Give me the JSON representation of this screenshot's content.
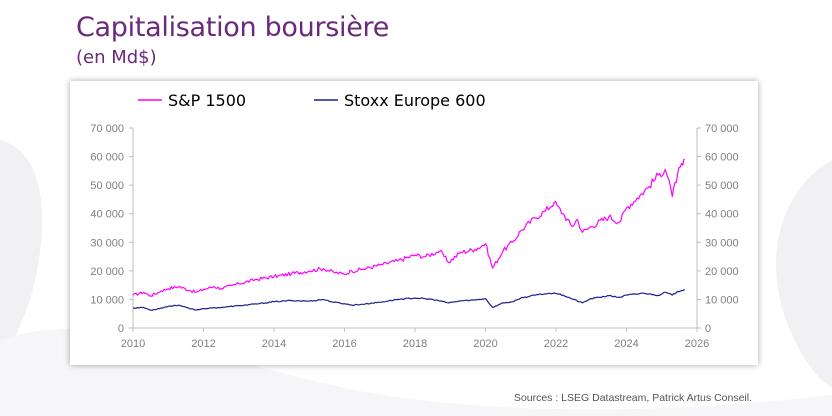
{
  "title": "Capitalisation boursière",
  "subtitle": "(en Md$)",
  "source": "Sources : LSEG Datastream, Patrick Artus Conseil.",
  "colors": {
    "title": "#6a2a7a",
    "sp1500": "#ff00ff",
    "stoxx600": "#1f1f8f",
    "axis": "#bfbfbf",
    "tick_text": "#7f7f7f"
  },
  "chart_data": {
    "type": "line",
    "title": "",
    "xlabel": "",
    "ylabel": "",
    "xlim": [
      2010,
      2026
    ],
    "ylim": [
      0,
      70000
    ],
    "x_ticks": [
      "2010",
      "2012",
      "2014",
      "2016",
      "2018",
      "2020",
      "2022",
      "2024",
      "2026"
    ],
    "y_ticks_left": [
      "70 000",
      "60 000",
      "50 000",
      "40 000",
      "30 000",
      "20 000",
      "10 000",
      "0"
    ],
    "y_ticks_right": [
      "70 000",
      "60 000",
      "50 000",
      "40 000",
      "30 000",
      "20 000",
      "10 000",
      "0"
    ],
    "grid": false,
    "legend_position": "top-left",
    "series": [
      {
        "name": "S&P 1500",
        "color": "#ff00ff",
        "points": [
          [
            2010.0,
            11500
          ],
          [
            2010.3,
            12500
          ],
          [
            2010.5,
            11200
          ],
          [
            2010.8,
            13000
          ],
          [
            2011.0,
            13800
          ],
          [
            2011.3,
            14500
          ],
          [
            2011.6,
            13200
          ],
          [
            2011.8,
            12500
          ],
          [
            2012.0,
            13500
          ],
          [
            2012.3,
            14500
          ],
          [
            2012.5,
            13800
          ],
          [
            2012.8,
            14800
          ],
          [
            2013.0,
            15500
          ],
          [
            2013.5,
            17000
          ],
          [
            2014.0,
            18000
          ],
          [
            2014.5,
            19000
          ],
          [
            2015.0,
            20000
          ],
          [
            2015.4,
            20800
          ],
          [
            2015.7,
            19500
          ],
          [
            2016.0,
            18800
          ],
          [
            2016.2,
            20000
          ],
          [
            2016.5,
            20500
          ],
          [
            2017.0,
            22000
          ],
          [
            2017.5,
            23500
          ],
          [
            2018.0,
            25500
          ],
          [
            2018.3,
            25000
          ],
          [
            2018.7,
            27000
          ],
          [
            2018.95,
            23000
          ],
          [
            2019.3,
            26500
          ],
          [
            2019.7,
            27500
          ],
          [
            2020.0,
            29500
          ],
          [
            2020.2,
            21000
          ],
          [
            2020.5,
            27000
          ],
          [
            2020.8,
            30500
          ],
          [
            2021.0,
            34000
          ],
          [
            2021.4,
            38500
          ],
          [
            2021.7,
            41000
          ],
          [
            2021.95,
            44000
          ],
          [
            2022.2,
            40000
          ],
          [
            2022.45,
            35500
          ],
          [
            2022.6,
            38000
          ],
          [
            2022.75,
            33500
          ],
          [
            2023.0,
            35500
          ],
          [
            2023.5,
            39000
          ],
          [
            2023.8,
            37000
          ],
          [
            2024.0,
            42000
          ],
          [
            2024.3,
            45500
          ],
          [
            2024.6,
            49000
          ],
          [
            2024.9,
            53500
          ],
          [
            2025.1,
            55500
          ],
          [
            2025.2,
            52000
          ],
          [
            2025.3,
            46000
          ],
          [
            2025.45,
            54000
          ],
          [
            2025.6,
            57000
          ],
          [
            2025.65,
            59000
          ]
        ]
      },
      {
        "name": "Stoxx Europe 600",
        "color": "#1f1f8f",
        "points": [
          [
            2010.0,
            7000
          ],
          [
            2010.3,
            7200
          ],
          [
            2010.5,
            6200
          ],
          [
            2010.8,
            7000
          ],
          [
            2011.0,
            7600
          ],
          [
            2011.3,
            8000
          ],
          [
            2011.6,
            6800
          ],
          [
            2011.8,
            6300
          ],
          [
            2012.0,
            6800
          ],
          [
            2012.5,
            7200
          ],
          [
            2013.0,
            7800
          ],
          [
            2013.5,
            8400
          ],
          [
            2014.0,
            9200
          ],
          [
            2014.5,
            9600
          ],
          [
            2015.0,
            9400
          ],
          [
            2015.4,
            10000
          ],
          [
            2015.7,
            9000
          ],
          [
            2016.0,
            8500
          ],
          [
            2016.2,
            8000
          ],
          [
            2016.5,
            8300
          ],
          [
            2017.0,
            9000
          ],
          [
            2017.5,
            10000
          ],
          [
            2018.0,
            10500
          ],
          [
            2018.5,
            10000
          ],
          [
            2018.95,
            8800
          ],
          [
            2019.3,
            9500
          ],
          [
            2019.7,
            9800
          ],
          [
            2020.0,
            10300
          ],
          [
            2020.2,
            7200
          ],
          [
            2020.5,
            8800
          ],
          [
            2020.8,
            9200
          ],
          [
            2021.0,
            10500
          ],
          [
            2021.5,
            11700
          ],
          [
            2021.95,
            12300
          ],
          [
            2022.2,
            11500
          ],
          [
            2022.5,
            10000
          ],
          [
            2022.75,
            8800
          ],
          [
            2023.0,
            10300
          ],
          [
            2023.5,
            11300
          ],
          [
            2023.8,
            10700
          ],
          [
            2024.0,
            11500
          ],
          [
            2024.5,
            12200
          ],
          [
            2024.9,
            11400
          ],
          [
            2025.1,
            12500
          ],
          [
            2025.3,
            11500
          ],
          [
            2025.45,
            12800
          ],
          [
            2025.65,
            13500
          ]
        ]
      }
    ]
  }
}
